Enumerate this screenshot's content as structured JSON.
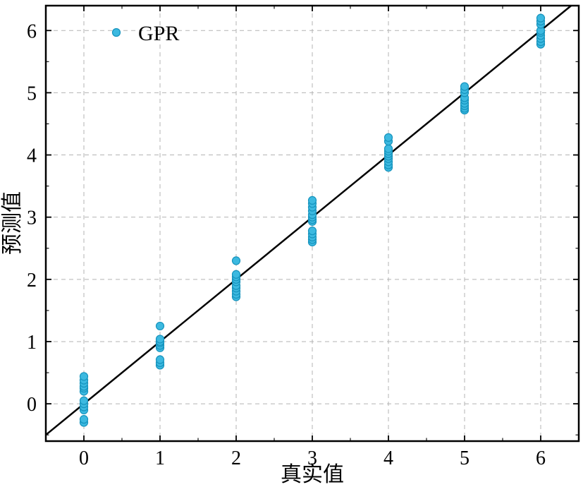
{
  "chart_data": {
    "type": "scatter",
    "title": "",
    "xlabel": "真实值",
    "ylabel": "预测值",
    "xlim": [
      -0.5,
      6.5
    ],
    "ylim": [
      -0.6,
      6.4
    ],
    "xticks": [
      0,
      1,
      2,
      3,
      4,
      5,
      6
    ],
    "yticks": [
      0,
      1,
      2,
      3,
      4,
      5,
      6
    ],
    "grid": true,
    "legend": {
      "position": "upper-left",
      "entries": [
        {
          "label": "GPR"
        }
      ]
    },
    "reference_line": {
      "type": "identity",
      "equation": "y = x"
    },
    "colors": {
      "grid": "#b3b3b3",
      "frame": "#000000",
      "line": "#000000",
      "background": "#ffffff"
    },
    "marker": {
      "shape": "circle",
      "fill": "#3cb9e0",
      "stroke": "#1593bd",
      "radius": 5.5
    },
    "series": [
      {
        "name": "GPR",
        "points": [
          [
            0,
            -0.3
          ],
          [
            0,
            -0.25
          ],
          [
            0,
            -0.1
          ],
          [
            0,
            -0.05
          ],
          [
            0,
            0.0
          ],
          [
            0,
            0.05
          ],
          [
            0,
            0.2
          ],
          [
            0,
            0.25
          ],
          [
            0,
            0.28
          ],
          [
            0,
            0.33
          ],
          [
            0,
            0.38
          ],
          [
            0,
            0.44
          ],
          [
            1,
            0.62
          ],
          [
            1,
            0.66
          ],
          [
            1,
            0.71
          ],
          [
            1,
            0.9
          ],
          [
            1,
            0.94
          ],
          [
            1,
            0.98
          ],
          [
            1,
            1.0
          ],
          [
            1,
            1.04
          ],
          [
            1,
            1.25
          ],
          [
            2,
            1.72
          ],
          [
            2,
            1.76
          ],
          [
            2,
            1.81
          ],
          [
            2,
            1.86
          ],
          [
            2,
            1.9
          ],
          [
            2,
            1.96
          ],
          [
            2,
            2.0
          ],
          [
            2,
            2.04
          ],
          [
            2,
            2.08
          ],
          [
            2,
            2.3
          ],
          [
            3,
            2.6
          ],
          [
            3,
            2.64
          ],
          [
            3,
            2.68
          ],
          [
            3,
            2.73
          ],
          [
            3,
            2.78
          ],
          [
            3,
            2.93
          ],
          [
            3,
            2.96
          ],
          [
            3,
            3.0
          ],
          [
            3,
            3.04
          ],
          [
            3,
            3.1
          ],
          [
            3,
            3.16
          ],
          [
            3,
            3.22
          ],
          [
            3,
            3.27
          ],
          [
            4,
            3.8
          ],
          [
            4,
            3.84
          ],
          [
            4,
            3.89
          ],
          [
            4,
            3.94
          ],
          [
            4,
            3.98
          ],
          [
            4,
            4.02
          ],
          [
            4,
            4.06
          ],
          [
            4,
            4.1
          ],
          [
            4,
            4.22
          ],
          [
            4,
            4.28
          ],
          [
            5,
            4.72
          ],
          [
            5,
            4.75
          ],
          [
            5,
            4.79
          ],
          [
            5,
            4.83
          ],
          [
            5,
            4.88
          ],
          [
            5,
            4.92
          ],
          [
            5,
            5.0
          ],
          [
            5,
            5.05
          ],
          [
            5,
            5.1
          ],
          [
            6,
            5.78
          ],
          [
            6,
            5.82
          ],
          [
            6,
            5.87
          ],
          [
            6,
            5.92
          ],
          [
            6,
            5.97
          ],
          [
            6,
            6.0
          ],
          [
            6,
            6.1
          ],
          [
            6,
            6.15
          ],
          [
            6,
            6.2
          ]
        ]
      }
    ]
  }
}
